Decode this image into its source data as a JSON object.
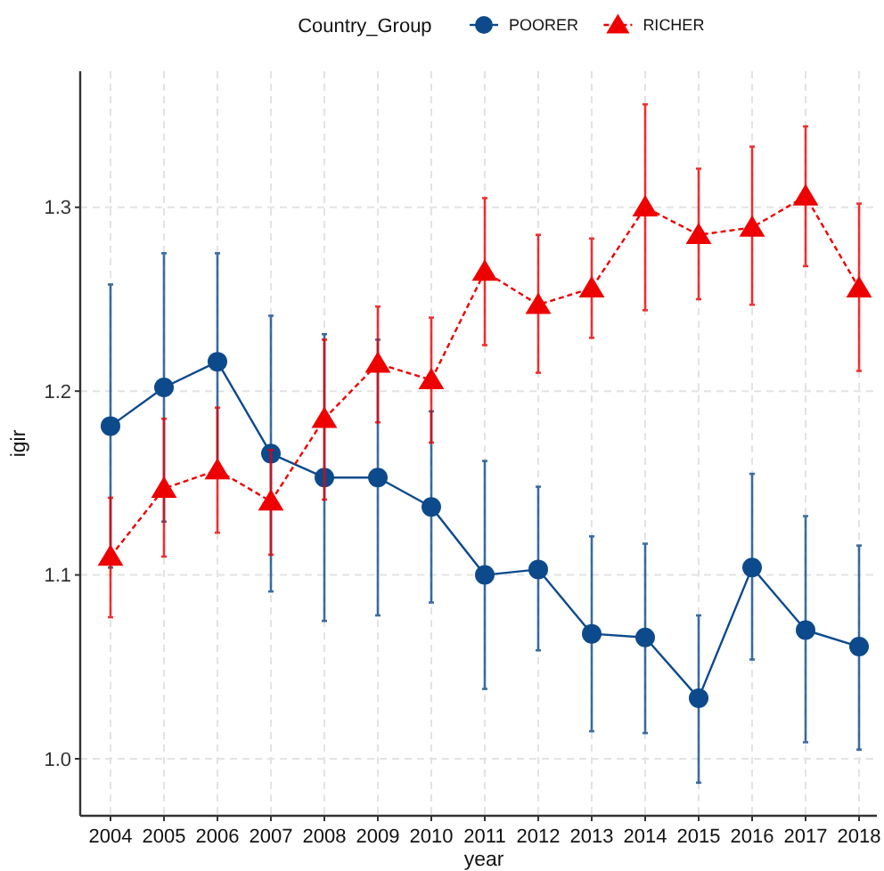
{
  "chart_data": {
    "type": "line",
    "xlabel": "year",
    "ylabel": "igir",
    "legend_title": "Country_Group",
    "legend": "top",
    "grid": true,
    "categories": [
      "2004",
      "2005",
      "2006",
      "2007",
      "2008",
      "2009",
      "2010",
      "2011",
      "2012",
      "2013",
      "2014",
      "2015",
      "2016",
      "2017",
      "2018"
    ],
    "ylim": [
      0.969,
      1.374
    ],
    "yticks": [
      {
        "value": 1.0,
        "label": "1.0"
      },
      {
        "value": 1.1,
        "label": "1.1"
      },
      {
        "value": 1.2,
        "label": "1.2"
      },
      {
        "value": 1.3,
        "label": "1.3"
      }
    ],
    "series": [
      {
        "name": "POORER",
        "color": "#0d4a8c",
        "marker": "circle",
        "line_style": "solid",
        "values": [
          1.181,
          1.202,
          1.216,
          1.166,
          1.153,
          1.153,
          1.137,
          1.1,
          1.103,
          1.068,
          1.066,
          1.033,
          1.104,
          1.07,
          1.061
        ],
        "errors": [
          [
            1.104,
            1.258
          ],
          [
            1.129,
            1.275
          ],
          [
            1.157,
            1.275
          ],
          [
            1.091,
            1.241
          ],
          [
            1.075,
            1.231
          ],
          [
            1.078,
            1.228
          ],
          [
            1.085,
            1.189
          ],
          [
            1.038,
            1.162
          ],
          [
            1.059,
            1.148
          ],
          [
            1.015,
            1.121
          ],
          [
            1.014,
            1.117
          ],
          [
            0.987,
            1.078
          ],
          [
            1.054,
            1.155
          ],
          [
            1.009,
            1.132
          ],
          [
            1.005,
            1.116
          ]
        ]
      },
      {
        "name": "RICHER",
        "color": "#ee0000",
        "marker": "triangle",
        "line_style": "dashed",
        "values": [
          1.11,
          1.147,
          1.157,
          1.14,
          1.185,
          1.215,
          1.206,
          1.265,
          1.247,
          1.256,
          1.3,
          1.285,
          1.289,
          1.306,
          1.256
        ],
        "errors": [
          [
            1.077,
            1.142
          ],
          [
            1.11,
            1.185
          ],
          [
            1.123,
            1.191
          ],
          [
            1.111,
            1.168
          ],
          [
            1.141,
            1.228
          ],
          [
            1.183,
            1.246
          ],
          [
            1.172,
            1.24
          ],
          [
            1.225,
            1.305
          ],
          [
            1.21,
            1.285
          ],
          [
            1.229,
            1.283
          ],
          [
            1.244,
            1.356
          ],
          [
            1.25,
            1.321
          ],
          [
            1.247,
            1.333
          ],
          [
            1.268,
            1.344
          ],
          [
            1.211,
            1.302
          ]
        ]
      }
    ]
  }
}
